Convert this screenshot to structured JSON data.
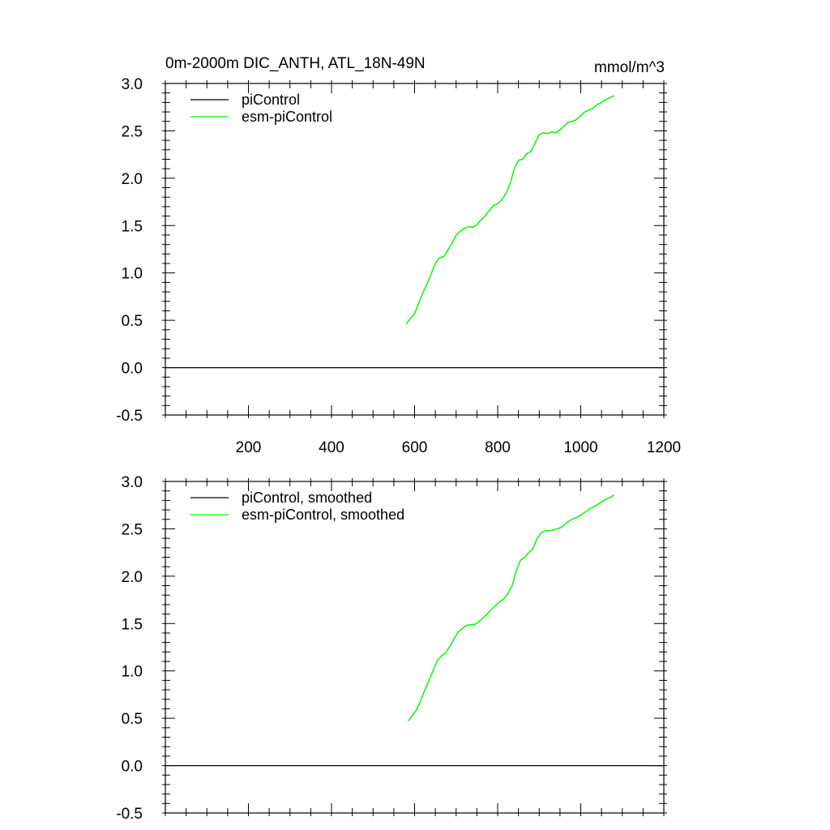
{
  "chart_data": [
    {
      "type": "line",
      "title": "0m-2000m DIC_ANTH, ATL_18N-49N",
      "units": "mmol/m^3",
      "xlim": [
        0,
        1200
      ],
      "ylim": [
        -0.5,
        3.0
      ],
      "x_ticks": [
        200,
        400,
        600,
        800,
        1000,
        1200
      ],
      "x_tick_labels": [
        "200",
        "400",
        "600",
        "800",
        "1000",
        "1200"
      ],
      "y_ticks": [
        -0.5,
        0.0,
        0.5,
        1.0,
        1.5,
        2.0,
        2.5,
        3.0
      ],
      "y_tick_labels": [
        "-0.5",
        "0.0",
        "0.5",
        "1.0",
        "1.5",
        "2.0",
        "2.5",
        "3.0"
      ],
      "legend_position": "top-left",
      "series": [
        {
          "name": "piControl",
          "color": "#000000",
          "x": [
            0,
            1200
          ],
          "y": [
            0.0,
            0.0
          ]
        },
        {
          "name": "esm-piControl",
          "color": "#00ff00",
          "x": [
            580,
            590,
            600,
            610,
            620,
            630,
            640,
            650,
            660,
            670,
            680,
            690,
            700,
            710,
            720,
            730,
            740,
            750,
            760,
            770,
            780,
            790,
            800,
            810,
            820,
            830,
            840,
            850,
            860,
            870,
            880,
            890,
            900,
            910,
            920,
            930,
            940,
            950,
            960,
            970,
            980,
            990,
            1000,
            1010,
            1020,
            1030,
            1040,
            1050,
            1060,
            1070,
            1080
          ],
          "y": [
            0.46,
            0.52,
            0.57,
            0.68,
            0.79,
            0.88,
            0.99,
            1.1,
            1.16,
            1.17,
            1.24,
            1.31,
            1.4,
            1.44,
            1.47,
            1.49,
            1.48,
            1.51,
            1.56,
            1.6,
            1.66,
            1.71,
            1.73,
            1.77,
            1.84,
            1.94,
            2.1,
            2.19,
            2.2,
            2.26,
            2.28,
            2.37,
            2.46,
            2.48,
            2.47,
            2.49,
            2.48,
            2.51,
            2.55,
            2.59,
            2.6,
            2.62,
            2.66,
            2.7,
            2.72,
            2.74,
            2.78,
            2.8,
            2.83,
            2.85,
            2.87
          ]
        }
      ]
    },
    {
      "type": "line",
      "xlim": [
        0,
        1200
      ],
      "ylim": [
        -0.5,
        3.0
      ],
      "y_ticks": [
        -0.5,
        0.0,
        0.5,
        1.0,
        1.5,
        2.0,
        2.5,
        3.0
      ],
      "y_tick_labels": [
        "-0.5",
        "0.0",
        "0.5",
        "1.0",
        "1.5",
        "2.0",
        "2.5",
        "3.0"
      ],
      "x_ticks": [
        200,
        400,
        600,
        800,
        1000,
        1200
      ],
      "legend_position": "top-left",
      "series": [
        {
          "name": "piControl, smoothed",
          "color": "#000000",
          "x": [
            0,
            1200
          ],
          "y": [
            0.0,
            0.0
          ]
        },
        {
          "name": "esm-piControl, smoothed",
          "color": "#00ff00",
          "x": [
            585,
            595,
            605,
            615,
            625,
            635,
            645,
            655,
            665,
            675,
            685,
            695,
            705,
            715,
            725,
            735,
            745,
            755,
            765,
            775,
            785,
            795,
            805,
            815,
            825,
            835,
            845,
            855,
            865,
            875,
            885,
            895,
            905,
            915,
            925,
            935,
            945,
            955,
            965,
            975,
            985,
            995,
            1005,
            1015,
            1025,
            1035,
            1045,
            1055,
            1065,
            1075,
            1080
          ],
          "y": [
            0.47,
            0.53,
            0.59,
            0.69,
            0.8,
            0.9,
            1.01,
            1.11,
            1.16,
            1.19,
            1.26,
            1.34,
            1.41,
            1.45,
            1.48,
            1.49,
            1.49,
            1.52,
            1.56,
            1.6,
            1.65,
            1.69,
            1.73,
            1.76,
            1.82,
            1.9,
            2.06,
            2.17,
            2.2,
            2.25,
            2.29,
            2.4,
            2.46,
            2.48,
            2.48,
            2.49,
            2.5,
            2.52,
            2.56,
            2.59,
            2.61,
            2.63,
            2.66,
            2.69,
            2.72,
            2.74,
            2.77,
            2.8,
            2.82,
            2.84,
            2.86
          ]
        }
      ]
    }
  ]
}
